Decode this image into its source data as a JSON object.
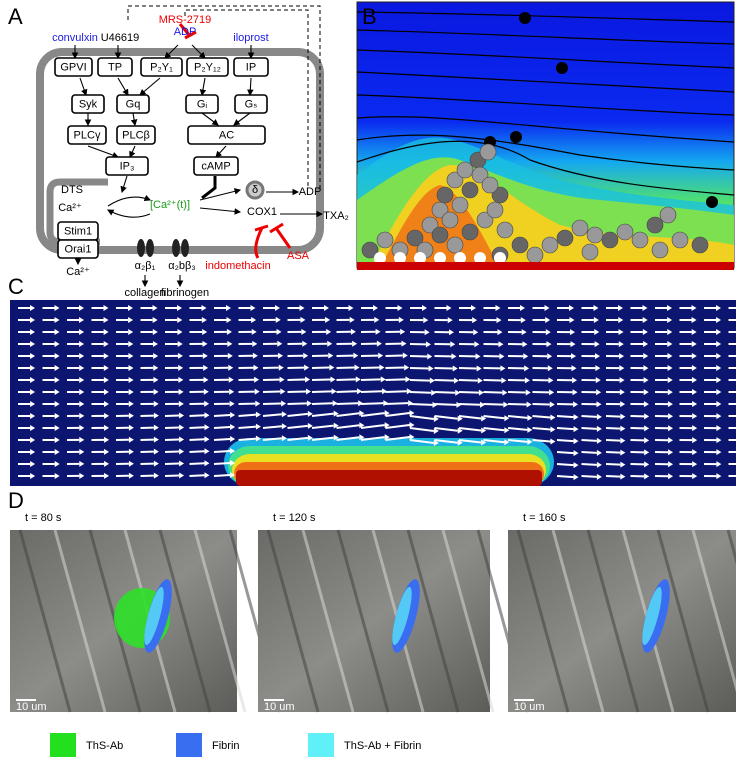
{
  "panel_labels": [
    "A",
    "B",
    "C",
    "D"
  ],
  "diagram": {
    "boxes": [
      "GPVI",
      "TP",
      "P₂Y₁",
      "P₂Y₁₂",
      "IP",
      "Syk",
      "Gq",
      "Gᵢ",
      "Gₛ",
      "PLCγ",
      "PLCβ",
      "AC",
      "IP₃",
      "cAMP",
      "Stim1",
      "Orai1"
    ],
    "labels": [
      "convulxin",
      "U46619",
      "ADP",
      "iloprost",
      "MRS-2719",
      "DTS",
      "Ca²⁺",
      "[Ca²⁺(t)]",
      "δ",
      "ADP",
      "COX1",
      "TXA₂",
      "indomethacin",
      "ASA",
      "α₂β₁",
      "α₂bβ₃",
      "collagen",
      "fibrinogen",
      "Ca²⁺"
    ]
  },
  "timepoints": [
    "t = 80 s",
    "t = 120 s",
    "t = 160 s"
  ],
  "scale_bars": [
    "10 um",
    "10 um",
    "10 um"
  ],
  "legend": [
    {
      "name": "ThS-Ab",
      "color": "#22e01e"
    },
    {
      "name": "Fibrin",
      "color": "#3a6ef0"
    },
    {
      "name": "ThS-Ab + Fibrin",
      "color": "#5ff0f8"
    }
  ]
}
